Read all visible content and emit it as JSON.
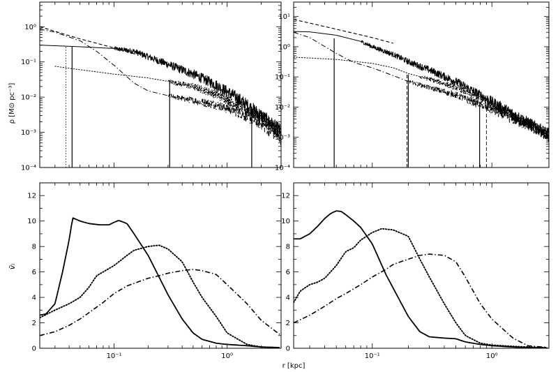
{
  "chart_data": [
    {
      "type": "line",
      "panel": "top-left",
      "ylabel": "ρ [M⊙ pc⁻³]",
      "xscale": "log",
      "yscale": "log",
      "xlim": [
        0.022,
        3.0
      ],
      "ylim": [
        0.0001,
        5.0
      ],
      "yticks": [
        0.0001,
        0.001,
        0.01,
        0.1,
        1
      ],
      "ytick_labels": [
        "10⁻⁴",
        "10⁻³",
        "10⁻²",
        "10⁻¹",
        "10⁰"
      ],
      "series": [
        {
          "style": "solid",
          "noisy_from": 0.1,
          "x": [
            0.022,
            0.05,
            0.1,
            0.15,
            0.2,
            0.3,
            0.5,
            0.8,
            1.2,
            2.0,
            3.0
          ],
          "y": [
            0.3,
            0.27,
            0.24,
            0.2,
            0.14,
            0.085,
            0.045,
            0.022,
            0.01,
            0.003,
            0.001
          ]
        },
        {
          "style": "dashdot",
          "noisy_from": 0.3,
          "x": [
            0.022,
            0.03,
            0.05,
            0.07,
            0.1,
            0.15,
            0.2,
            0.3,
            0.5,
            0.8,
            1.2,
            2.0,
            3.0
          ],
          "y": [
            0.85,
            0.7,
            0.4,
            0.2,
            0.08,
            0.025,
            0.015,
            0.011,
            0.008,
            0.006,
            0.004,
            0.0018,
            0.0007
          ]
        },
        {
          "style": "dotted",
          "noisy_from": 0.3,
          "x": [
            0.03,
            0.05,
            0.1,
            0.2,
            0.3,
            0.5,
            0.8,
            1.2,
            2.0,
            3.0
          ],
          "y": [
            0.075,
            0.06,
            0.045,
            0.035,
            0.028,
            0.02,
            0.012,
            0.0065,
            0.0025,
            0.001
          ]
        },
        {
          "style": "dashed",
          "x": [
            0.022,
            0.05,
            0.1,
            0.15
          ],
          "y": [
            1.0,
            0.45,
            0.25,
            0.17
          ]
        }
      ],
      "vlines": [
        {
          "x": 0.0375,
          "style": "dotted",
          "y_top": 0.28
        },
        {
          "x": 0.0425,
          "style": "solid",
          "y_top": 0.28
        },
        {
          "x": 0.31,
          "style": "solid",
          "y_top": 0.028
        },
        {
          "x": 1.65,
          "style": "solid",
          "y_top": 0.005
        }
      ]
    },
    {
      "type": "line",
      "panel": "top-right",
      "xscale": "log",
      "yscale": "log",
      "xlim": [
        0.022,
        3.0
      ],
      "ylim": [
        0.0001,
        30.0
      ],
      "yticks": [
        0.0001,
        0.001,
        0.01,
        0.1,
        1,
        10
      ],
      "ytick_labels": [
        "10⁻⁴",
        "10⁻³",
        "10⁻²",
        "10⁻¹",
        "10⁰",
        "10¹"
      ],
      "series": [
        {
          "style": "solid",
          "noisy_from": 0.08,
          "x": [
            0.022,
            0.03,
            0.05,
            0.08,
            0.1,
            0.15,
            0.2,
            0.3,
            0.5,
            0.8,
            1.2,
            2.0,
            3.0
          ],
          "y": [
            3.2,
            3.1,
            2.4,
            1.5,
            1.0,
            0.55,
            0.32,
            0.17,
            0.07,
            0.025,
            0.01,
            0.003,
            0.0012
          ]
        },
        {
          "style": "dashdot",
          "noisy_from": 0.2,
          "x": [
            0.022,
            0.03,
            0.05,
            0.07,
            0.1,
            0.15,
            0.2,
            0.3,
            0.5,
            0.8,
            1.2,
            2.0,
            3.0
          ],
          "y": [
            3.0,
            2.0,
            0.6,
            0.3,
            0.2,
            0.11,
            0.07,
            0.045,
            0.025,
            0.012,
            0.006,
            0.0025,
            0.0012
          ]
        },
        {
          "style": "dotted",
          "noisy_from": 0.25,
          "x": [
            0.022,
            0.05,
            0.1,
            0.15,
            0.2,
            0.3,
            0.5,
            0.8,
            1.2,
            2.0,
            3.0
          ],
          "y": [
            0.45,
            0.38,
            0.28,
            0.2,
            0.13,
            0.085,
            0.045,
            0.02,
            0.008,
            0.003,
            0.0011
          ]
        },
        {
          "style": "dashed",
          "x": [
            0.022,
            0.05,
            0.1,
            0.15
          ],
          "y": [
            8.0,
            3.8,
            2.0,
            1.3
          ]
        }
      ],
      "vlines": [
        {
          "x": 0.048,
          "style": "solid",
          "y_top": 1.9
        },
        {
          "x": 0.195,
          "style": "dashed",
          "y_top": 0.12
        },
        {
          "x": 0.2,
          "style": "solid",
          "y_top": 0.12
        },
        {
          "x": 0.79,
          "style": "solid",
          "y_top": 0.012
        },
        {
          "x": 0.9,
          "style": "dashed",
          "y_top": 0.01
        }
      ]
    },
    {
      "type": "line",
      "panel": "bottom-left",
      "ylabel": "ṽᵢ",
      "xscale": "log",
      "yscale": "linear",
      "xlim": [
        0.022,
        3.0
      ],
      "ylim": [
        0,
        13
      ],
      "yticks": [
        0,
        2,
        4,
        6,
        8,
        10,
        12
      ],
      "ytick_labels": [
        "0",
        "2",
        "4",
        "6",
        "8",
        "10",
        "12"
      ],
      "xtick_labels": [
        "10⁻¹",
        "10⁰"
      ],
      "series": [
        {
          "style": "solid",
          "x": [
            0.022,
            0.025,
            0.03,
            0.035,
            0.04,
            0.043,
            0.05,
            0.06,
            0.075,
            0.09,
            0.1,
            0.11,
            0.13,
            0.15,
            0.2,
            0.25,
            0.3,
            0.4,
            0.5,
            0.6,
            0.8,
            1.0,
            1.5,
            2.0,
            3.0
          ],
          "y": [
            2.6,
            2.7,
            3.5,
            6.0,
            8.5,
            10.25,
            10.0,
            9.8,
            9.7,
            9.7,
            9.9,
            10.05,
            9.8,
            9.0,
            7.3,
            5.6,
            4.2,
            2.3,
            1.2,
            0.7,
            0.4,
            0.3,
            0.2,
            0.1,
            0.05
          ]
        },
        {
          "style": "dotted",
          "x": [
            0.022,
            0.03,
            0.04,
            0.05,
            0.06,
            0.07,
            0.08,
            0.1,
            0.13,
            0.15,
            0.2,
            0.25,
            0.3,
            0.4,
            0.5,
            0.6,
            0.8,
            1.0,
            1.5,
            2.0,
            3.0
          ],
          "y": [
            2.4,
            3.0,
            3.5,
            4.0,
            4.8,
            5.7,
            6.0,
            6.5,
            7.3,
            7.7,
            8.0,
            8.1,
            7.8,
            6.8,
            5.2,
            4.0,
            2.5,
            1.2,
            0.3,
            0.1,
            0.05
          ]
        },
        {
          "style": "dashdot",
          "x": [
            0.022,
            0.03,
            0.04,
            0.05,
            0.06,
            0.08,
            0.1,
            0.13,
            0.15,
            0.2,
            0.25,
            0.3,
            0.4,
            0.5,
            0.6,
            0.8,
            1.0,
            1.5,
            2.0,
            3.0
          ],
          "y": [
            1.0,
            1.3,
            1.8,
            2.3,
            2.8,
            3.6,
            4.3,
            4.9,
            5.1,
            5.5,
            5.7,
            5.9,
            6.1,
            6.2,
            6.1,
            5.8,
            5.0,
            3.5,
            2.2,
            1.0
          ]
        }
      ]
    },
    {
      "type": "line",
      "panel": "bottom-right",
      "xscale": "log",
      "yscale": "linear",
      "xlim": [
        0.022,
        3.0
      ],
      "ylim": [
        0,
        13
      ],
      "yticks": [
        0,
        2,
        4,
        6,
        8,
        10,
        12
      ],
      "ytick_labels": [
        "0",
        "2",
        "4",
        "6",
        "8",
        "10",
        "12"
      ],
      "xtick_labels": [
        "10⁻¹",
        "10⁰"
      ],
      "series": [
        {
          "style": "solid",
          "x": [
            0.022,
            0.025,
            0.03,
            0.035,
            0.04,
            0.045,
            0.05,
            0.055,
            0.06,
            0.07,
            0.08,
            0.1,
            0.13,
            0.15,
            0.2,
            0.25,
            0.3,
            0.4,
            0.5,
            0.6,
            0.8,
            1.0,
            1.5,
            2.0,
            3.0
          ],
          "y": [
            8.6,
            8.6,
            9.0,
            9.6,
            10.2,
            10.6,
            10.8,
            10.75,
            10.5,
            10.0,
            9.5,
            8.2,
            5.8,
            4.7,
            2.5,
            1.3,
            0.9,
            0.8,
            0.75,
            0.5,
            0.3,
            0.2,
            0.1,
            0.05,
            0.0
          ]
        },
        {
          "style": "dotted",
          "x": [
            0.022,
            0.025,
            0.03,
            0.035,
            0.04,
            0.05,
            0.06,
            0.07,
            0.08,
            0.1,
            0.12,
            0.15,
            0.2,
            0.25,
            0.3,
            0.4,
            0.5,
            0.6,
            0.8,
            1.0,
            1.5,
            2.0,
            3.0
          ],
          "y": [
            3.6,
            4.5,
            5.0,
            5.2,
            5.5,
            6.5,
            7.6,
            7.9,
            8.5,
            9.1,
            9.4,
            9.3,
            8.8,
            7.0,
            5.6,
            3.5,
            2.0,
            1.0,
            0.4,
            0.25,
            0.15,
            0.1,
            0.05
          ]
        },
        {
          "style": "dashdot",
          "x": [
            0.022,
            0.03,
            0.04,
            0.05,
            0.06,
            0.08,
            0.1,
            0.13,
            0.15,
            0.2,
            0.25,
            0.3,
            0.4,
            0.5,
            0.6,
            0.8,
            1.0,
            1.5,
            2.0,
            3.0
          ],
          "y": [
            2.0,
            2.6,
            3.3,
            3.9,
            4.3,
            5.0,
            5.6,
            6.2,
            6.6,
            7.0,
            7.3,
            7.4,
            7.3,
            6.8,
            5.6,
            3.5,
            2.3,
            0.8,
            0.2,
            0.05
          ]
        }
      ]
    }
  ],
  "shared_xlabel": "r [kpc]"
}
